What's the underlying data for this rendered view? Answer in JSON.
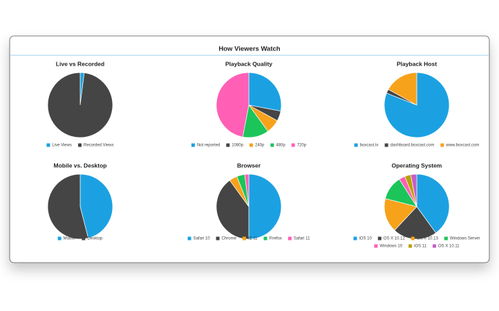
{
  "title": "How Viewers Watch",
  "chart_data": [
    {
      "type": "pie",
      "title": "Live vs Recorded",
      "categories": [
        "Live Views",
        "Recorded Views"
      ],
      "values": [
        2,
        98
      ],
      "colors": [
        "#1ba1e2",
        "#454545"
      ]
    },
    {
      "type": "pie",
      "title": "Playback Quality",
      "categories": [
        "Not reported",
        "1080p",
        "240p",
        "480p",
        "720p"
      ],
      "values": [
        28,
        5,
        7,
        13,
        47
      ],
      "colors": [
        "#1ba1e2",
        "#454545",
        "#f7a21b",
        "#1cc55a",
        "#ff5fb5"
      ]
    },
    {
      "type": "pie",
      "title": "Playback Host",
      "categories": [
        "boxcast.tv",
        "dashboard.boxcast.com",
        "www.boxcast.com"
      ],
      "values": [
        81,
        2,
        17
      ],
      "colors": [
        "#1ba1e2",
        "#454545",
        "#f7a21b"
      ]
    },
    {
      "type": "pie",
      "title": "Mobile vs. Desktop",
      "categories": [
        "Mobile",
        "Desktop"
      ],
      "values": [
        46,
        54
      ],
      "colors": [
        "#1ba1e2",
        "#454545"
      ]
    },
    {
      "type": "pie",
      "title": "Browser",
      "categories": [
        "Safari 10",
        "Chrome",
        "IE 11",
        "Firefox",
        "Safari 11"
      ],
      "values": [
        50,
        40,
        4,
        4,
        2
      ],
      "colors": [
        "#1ba1e2",
        "#454545",
        "#f7a21b",
        "#1cc55a",
        "#ff5fb5"
      ]
    },
    {
      "type": "pie",
      "title": "Operating System",
      "categories": [
        "iOS 10",
        "OS X 10.12",
        "OS X 10.13",
        "Windows Server",
        "Windows 10",
        "iOS 11",
        "OS X 10.11"
      ],
      "values": [
        40,
        22,
        17,
        12,
        3,
        3,
        3
      ],
      "colors": [
        "#1ba1e2",
        "#454545",
        "#f7a21b",
        "#1cc55a",
        "#ff5fb5",
        "#b8a200",
        "#c75fc7"
      ]
    }
  ]
}
